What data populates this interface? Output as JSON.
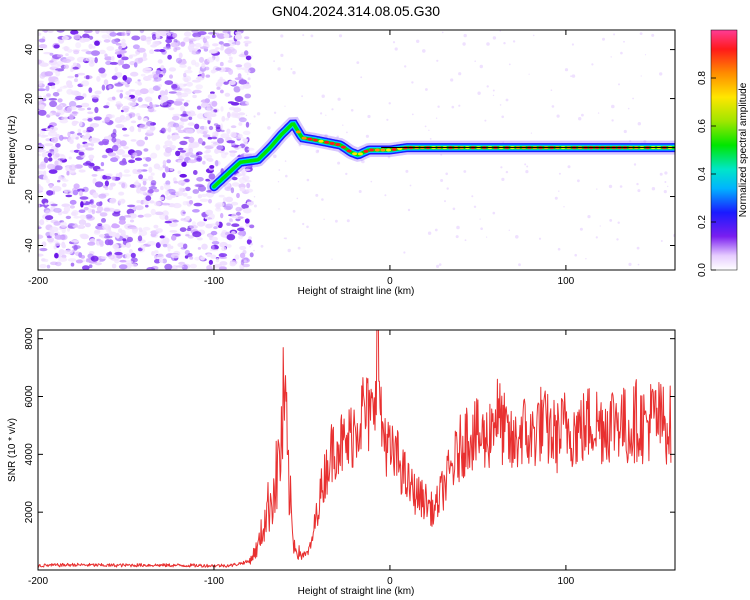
{
  "title": "GN04.2024.314.08.05.G30",
  "colorbar": {
    "label": "Normalized spectral amplitude",
    "ticks": [
      "0.0",
      "0.2",
      "0.4",
      "0.6",
      "0.8"
    ]
  },
  "chart_data": [
    {
      "type": "heatmap",
      "xlabel": "Height of straight line (km)",
      "ylabel": "Frequency (Hz)",
      "xlim": [
        -200,
        162
      ],
      "ylim": [
        -50,
        48
      ],
      "xticks": [
        "-200",
        "-100",
        "0",
        "100"
      ],
      "yticks": [
        "-40",
        "-20",
        "0",
        "20",
        "40"
      ],
      "colorbar_range": [
        0,
        1
      ],
      "noise_region_x": [
        -200,
        -83
      ],
      "ridge": {
        "x": [
          -100,
          -85,
          -75,
          -68,
          -62,
          -55,
          -50,
          -42,
          -35,
          -28,
          -22,
          -18,
          -12,
          -5,
          0,
          10,
          20,
          35,
          50,
          70,
          90,
          110,
          130,
          150,
          162
        ],
        "y": [
          -16,
          -6,
          -5,
          0,
          5,
          10,
          4,
          3,
          2,
          1,
          -2,
          -3,
          -1,
          -1,
          -1,
          0,
          0,
          0,
          0,
          0,
          0,
          0,
          0,
          0,
          0
        ]
      },
      "peak_line_y": 0,
      "grid": false
    },
    {
      "type": "line",
      "xlabel": "Height of straight line (km)",
      "ylabel": "SNR (10 * v/v)",
      "xlim": [
        -200,
        162
      ],
      "ylim": [
        0,
        8300
      ],
      "xticks": [
        "-200",
        "-100",
        "0",
        "100"
      ],
      "yticks": [
        "2000",
        "4000",
        "6000",
        "8000"
      ],
      "color": "#e83030",
      "series": [
        {
          "x": [
            -200,
            -180,
            -160,
            -140,
            -120,
            -100,
            -90,
            -80,
            -75,
            -70,
            -65,
            -62,
            -60,
            -58,
            -55,
            -52,
            -48,
            -45,
            -40,
            -35,
            -30,
            -25,
            -20,
            -15,
            -10,
            -7,
            -5,
            -2,
            0,
            5,
            10,
            15,
            20,
            25,
            30,
            35,
            40,
            45,
            50,
            55,
            60,
            65,
            70,
            75,
            80,
            85,
            90,
            95,
            100,
            105,
            110,
            115,
            120,
            125,
            130,
            135,
            140,
            145,
            150,
            155,
            160
          ],
          "y": [
            150,
            180,
            160,
            170,
            160,
            150,
            160,
            300,
            800,
            2000,
            3000,
            4200,
            6000,
            3500,
            1000,
            600,
            500,
            800,
            2500,
            3800,
            4500,
            4200,
            5000,
            5500,
            5200,
            8200,
            5000,
            4500,
            4000,
            3800,
            3000,
            2600,
            2400,
            2000,
            2800,
            3500,
            4200,
            4800,
            4600,
            4500,
            5500,
            4800,
            4200,
            4900,
            4500,
            5100,
            4800,
            4600,
            5000,
            4800,
            4900,
            5200,
            5000,
            5100,
            5300,
            4800,
            5200,
            5000,
            5300,
            5100,
            5000
          ]
        }
      ],
      "grid": false
    }
  ]
}
